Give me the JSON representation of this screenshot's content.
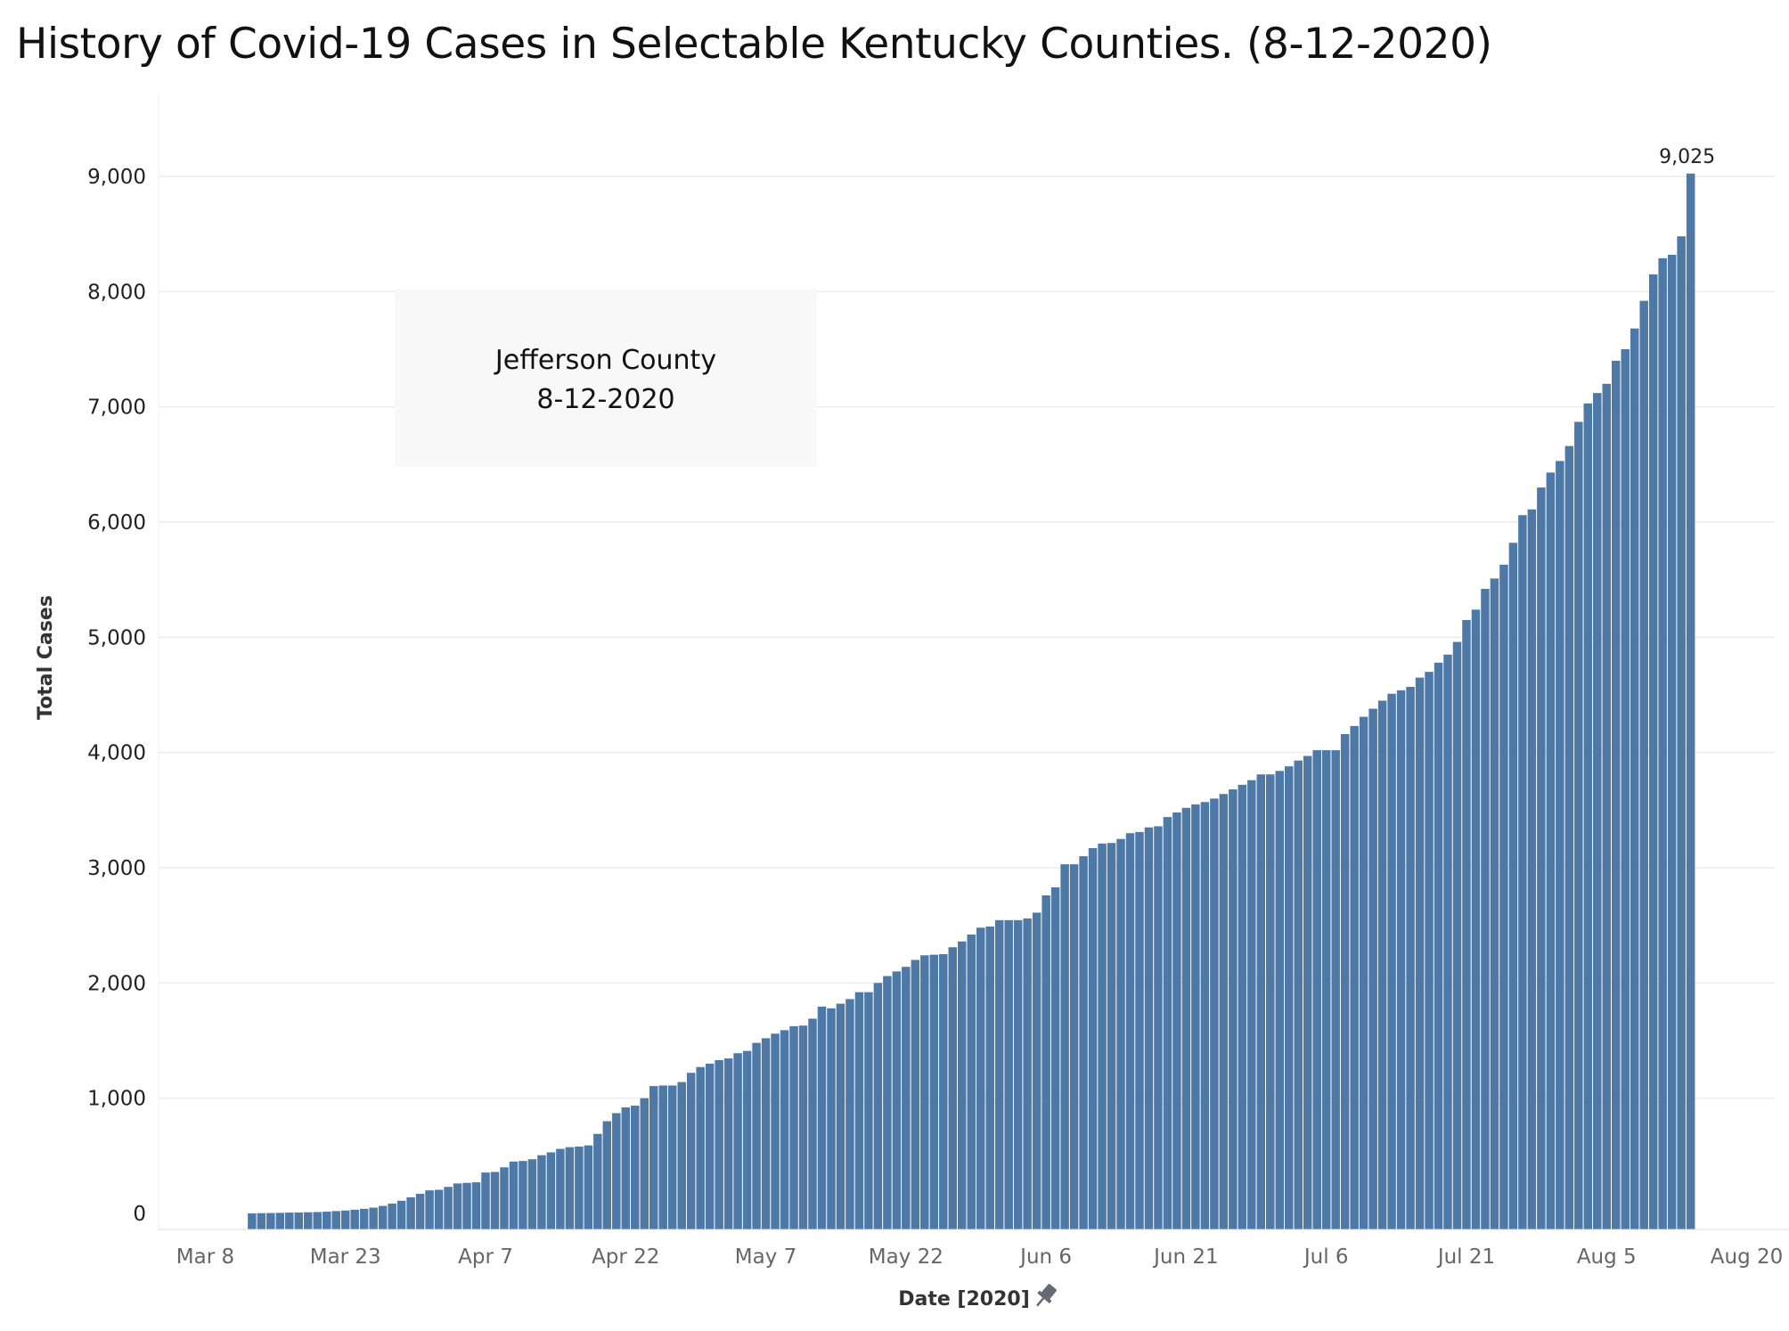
{
  "title": "History of Covid-19 Cases in Selectable Kentucky Counties. (8-12-2020)",
  "annotation": {
    "line1": "Jefferson County",
    "line2": "8-12-2020"
  },
  "colors": {
    "bar": "#4e79a7",
    "bar_edge": "#ffffff",
    "grid": "#ececec",
    "annotation_bg": "#f8f8f8",
    "pin": "#666a72"
  },
  "chart_data": {
    "type": "bar",
    "title": "History of Covid-19 Cases in Selectable Kentucky Counties. (8-12-2020)",
    "xlabel": "Date [2020]",
    "ylabel": "Total Cases",
    "ylim": [
      -100,
      9700
    ],
    "xlim": [
      "2020-03-03",
      "2020-08-23"
    ],
    "x_tick_labels": [
      "Mar 8",
      "Mar 23",
      "Apr 7",
      "Apr 22",
      "May 7",
      "May 22",
      "Jun 6",
      "Jun 21",
      "Jul 6",
      "Jul 21",
      "Aug 5",
      "Aug 20"
    ],
    "y_tick_labels": [
      "0",
      "1,000",
      "2,000",
      "3,000",
      "4,000",
      "5,000",
      "6,000",
      "7,000",
      "8,000",
      "9,000"
    ],
    "y_ticks": [
      0,
      1000,
      2000,
      3000,
      4000,
      5000,
      6000,
      7000,
      8000,
      9000
    ],
    "grid": true,
    "start_date": "2020-03-13",
    "values": [
      0,
      2,
      3,
      5,
      7,
      8,
      10,
      12,
      15,
      20,
      25,
      32,
      40,
      50,
      65,
      85,
      110,
      140,
      170,
      200,
      205,
      230,
      260,
      265,
      270,
      355,
      360,
      400,
      450,
      455,
      470,
      505,
      530,
      560,
      575,
      580,
      590,
      690,
      800,
      870,
      920,
      935,
      1000,
      1105,
      1110,
      1110,
      1140,
      1220,
      1270,
      1300,
      1330,
      1345,
      1390,
      1410,
      1480,
      1520,
      1560,
      1590,
      1625,
      1630,
      1690,
      1795,
      1780,
      1820,
      1860,
      1920,
      1920,
      2000,
      2060,
      2100,
      2140,
      2200,
      2240,
      2245,
      2250,
      2310,
      2360,
      2420,
      2480,
      2490,
      2545,
      2545,
      2545,
      2560,
      2610,
      2760,
      2830,
      3030,
      3030,
      3100,
      3170,
      3210,
      3215,
      3250,
      3300,
      3310,
      3350,
      3360,
      3440,
      3480,
      3520,
      3550,
      3570,
      3600,
      3640,
      3680,
      3720,
      3760,
      3810,
      3810,
      3840,
      3880,
      3930,
      3970,
      4020,
      4020,
      4020,
      4160,
      4230,
      4310,
      4380,
      4450,
      4510,
      4540,
      4570,
      4650,
      4700,
      4780,
      4850,
      4960,
      5150,
      5240,
      5420,
      5510,
      5630,
      5820,
      6060,
      6110,
      6300,
      6430,
      6530,
      6660,
      6870,
      7030,
      7120,
      7200,
      7400,
      7500,
      7680,
      7920,
      8150,
      8290,
      8320,
      8480,
      9025
    ],
    "value_label": "9,025"
  }
}
